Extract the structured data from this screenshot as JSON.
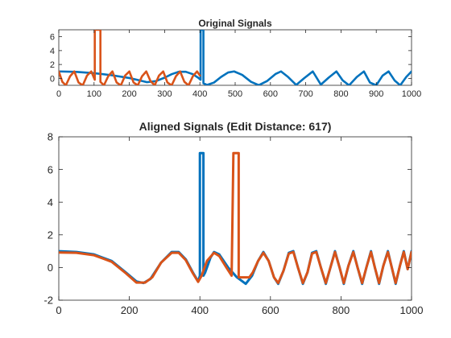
{
  "figure": {
    "background": "#ffffff",
    "axis_color": "#262626",
    "series_colors": [
      "#0072BD",
      "#D95319"
    ]
  },
  "chart_data": [
    {
      "type": "line",
      "title": "Original Signals",
      "xlim": [
        0,
        1000
      ],
      "ylim": [
        -1,
        7
      ],
      "xticks": [
        0,
        100,
        200,
        300,
        400,
        500,
        600,
        700,
        800,
        900,
        1000
      ],
      "yticks": [
        0,
        2,
        4,
        6
      ],
      "grid": false,
      "series": [
        {
          "color": "#0072BD",
          "points": [
            [
              0,
              1.0
            ],
            [
              50,
              0.93
            ],
            [
              100,
              0.75
            ],
            [
              150,
              0.45
            ],
            [
              200,
              0.05
            ],
            [
              230,
              -0.3
            ],
            [
              250,
              -0.55
            ],
            [
              275,
              -0.4
            ],
            [
              300,
              0.1
            ],
            [
              320,
              0.6
            ],
            [
              340,
              0.95
            ],
            [
              360,
              0.95
            ],
            [
              380,
              0.6
            ],
            [
              395,
              0.1
            ],
            [
              402,
              -0.2
            ],
            [
              402,
              7.0
            ],
            [
              410,
              7.0
            ],
            [
              410,
              -0.7
            ],
            [
              420,
              -0.95
            ],
            [
              440,
              -0.6
            ],
            [
              460,
              0.2
            ],
            [
              480,
              0.85
            ],
            [
              497,
              1.0
            ],
            [
              520,
              0.5
            ],
            [
              545,
              -0.5
            ],
            [
              567,
              -0.98
            ],
            [
              590,
              -0.4
            ],
            [
              615,
              0.65
            ],
            [
              630,
              1.0
            ],
            [
              650,
              0.2
            ],
            [
              673,
              -0.95
            ],
            [
              695,
              0.0
            ],
            [
              720,
              1.0
            ],
            [
              743,
              -0.9
            ],
            [
              765,
              0.1
            ],
            [
              787,
              1.0
            ],
            [
              805,
              -0.3
            ],
            [
              823,
              -1.0
            ],
            [
              845,
              0.2
            ],
            [
              865,
              1.0
            ],
            [
              882,
              -0.6
            ],
            [
              900,
              -1.0
            ],
            [
              918,
              0.4
            ],
            [
              935,
              1.0
            ],
            [
              952,
              -0.3
            ],
            [
              968,
              -1.0
            ],
            [
              985,
              0.2
            ],
            [
              1000,
              1.0
            ]
          ]
        },
        {
          "color": "#D95319",
          "points": [
            [
              0,
              1.0
            ],
            [
              10,
              -0.5
            ],
            [
              20,
              -1.0
            ],
            [
              32,
              0.3
            ],
            [
              44,
              1.0
            ],
            [
              56,
              -0.6
            ],
            [
              68,
              -1.0
            ],
            [
              80,
              0.4
            ],
            [
              92,
              1.0
            ],
            [
              102,
              -0.2
            ],
            [
              102,
              7.0
            ],
            [
              118,
              7.0
            ],
            [
              118,
              -0.5
            ],
            [
              128,
              -1.0
            ],
            [
              140,
              0.3
            ],
            [
              152,
              1.0
            ],
            [
              164,
              -0.6
            ],
            [
              176,
              -1.0
            ],
            [
              188,
              0.4
            ],
            [
              200,
              1.0
            ],
            [
              212,
              -0.6
            ],
            [
              224,
              -1.0
            ],
            [
              236,
              0.3
            ],
            [
              248,
              1.0
            ],
            [
              260,
              -0.4
            ],
            [
              272,
              -1.0
            ],
            [
              284,
              0.4
            ],
            [
              296,
              1.0
            ],
            [
              308,
              -0.6
            ],
            [
              320,
              -1.0
            ],
            [
              332,
              0.3
            ],
            [
              344,
              1.0
            ],
            [
              356,
              -0.5
            ],
            [
              368,
              -1.0
            ],
            [
              380,
              0.3
            ],
            [
              392,
              1.0
            ],
            [
              400,
              0.4
            ]
          ]
        }
      ]
    },
    {
      "type": "line",
      "title": "Aligned Signals (Edit Distance: 617)",
      "xlim": [
        0,
        1000
      ],
      "ylim": [
        -2,
        8
      ],
      "xticks": [
        0,
        200,
        400,
        600,
        800,
        1000
      ],
      "yticks": [
        -2,
        0,
        2,
        4,
        6,
        8
      ],
      "grid": false,
      "series": [
        {
          "color": "#0072BD",
          "points": [
            [
              0,
              1.0
            ],
            [
              50,
              0.95
            ],
            [
              100,
              0.8
            ],
            [
              150,
              0.4
            ],
            [
              190,
              -0.3
            ],
            [
              220,
              -0.85
            ],
            [
              240,
              -0.95
            ],
            [
              260,
              -0.7
            ],
            [
              290,
              0.3
            ],
            [
              320,
              0.95
            ],
            [
              340,
              0.95
            ],
            [
              360,
              0.5
            ],
            [
              380,
              -0.3
            ],
            [
              395,
              -0.85
            ],
            [
              400,
              -0.5
            ],
            [
              400,
              7.0
            ],
            [
              410,
              7.0
            ],
            [
              410,
              -0.5
            ],
            [
              415,
              -0.3
            ],
            [
              430,
              0.6
            ],
            [
              440,
              0.95
            ],
            [
              455,
              0.8
            ],
            [
              480,
              0.0
            ],
            [
              505,
              -0.6
            ],
            [
              530,
              -1.0
            ],
            [
              548,
              -0.5
            ],
            [
              565,
              0.4
            ],
            [
              580,
              0.95
            ],
            [
              595,
              0.4
            ],
            [
              610,
              -0.6
            ],
            [
              622,
              -1.0
            ],
            [
              637,
              -0.2
            ],
            [
              652,
              0.9
            ],
            [
              665,
              1.0
            ],
            [
              678,
              0.0
            ],
            [
              692,
              -1.0
            ],
            [
              705,
              -0.3
            ],
            [
              718,
              0.9
            ],
            [
              730,
              1.0
            ],
            [
              743,
              0.0
            ],
            [
              757,
              -1.0
            ],
            [
              770,
              0.0
            ],
            [
              783,
              1.0
            ],
            [
              796,
              0.0
            ],
            [
              808,
              -1.0
            ],
            [
              821,
              0.1
            ],
            [
              835,
              1.0
            ],
            [
              847,
              0.0
            ],
            [
              860,
              -1.0
            ],
            [
              872,
              0.0
            ],
            [
              885,
              1.0
            ],
            [
              896,
              0.0
            ],
            [
              908,
              -1.0
            ],
            [
              920,
              0.1
            ],
            [
              933,
              1.0
            ],
            [
              944,
              0.0
            ],
            [
              955,
              -1.0
            ],
            [
              967,
              0.1
            ],
            [
              978,
              1.0
            ],
            [
              989,
              -0.1
            ],
            [
              1000,
              1.0
            ]
          ]
        },
        {
          "color": "#D95319",
          "points": [
            [
              0,
              0.92
            ],
            [
              50,
              0.9
            ],
            [
              100,
              0.75
            ],
            [
              150,
              0.35
            ],
            [
              190,
              -0.35
            ],
            [
              220,
              -0.92
            ],
            [
              245,
              -0.92
            ],
            [
              265,
              -0.6
            ],
            [
              290,
              0.3
            ],
            [
              320,
              0.9
            ],
            [
              340,
              0.9
            ],
            [
              360,
              0.45
            ],
            [
              380,
              -0.35
            ],
            [
              395,
              -0.88
            ],
            [
              405,
              -0.5
            ],
            [
              420,
              0.4
            ],
            [
              440,
              0.9
            ],
            [
              455,
              0.7
            ],
            [
              475,
              0.0
            ],
            [
              490,
              -0.5
            ],
            [
              495,
              7.0
            ],
            [
              510,
              7.0
            ],
            [
              510,
              -0.6
            ],
            [
              540,
              -0.6
            ],
            [
              550,
              -0.3
            ],
            [
              565,
              0.4
            ],
            [
              580,
              0.9
            ],
            [
              595,
              0.4
            ],
            [
              610,
              -0.6
            ],
            [
              622,
              -0.95
            ],
            [
              637,
              -0.2
            ],
            [
              652,
              0.85
            ],
            [
              665,
              0.95
            ],
            [
              678,
              0.0
            ],
            [
              692,
              -0.95
            ],
            [
              705,
              -0.3
            ],
            [
              718,
              0.85
            ],
            [
              730,
              0.95
            ],
            [
              743,
              0.0
            ],
            [
              757,
              -0.95
            ],
            [
              770,
              0.0
            ],
            [
              783,
              0.95
            ],
            [
              796,
              0.0
            ],
            [
              808,
              -0.95
            ],
            [
              821,
              0.1
            ],
            [
              835,
              0.95
            ],
            [
              847,
              0.0
            ],
            [
              860,
              -0.95
            ],
            [
              872,
              0.0
            ],
            [
              885,
              0.95
            ],
            [
              896,
              0.0
            ],
            [
              908,
              -0.95
            ],
            [
              920,
              0.1
            ],
            [
              933,
              0.95
            ],
            [
              944,
              0.0
            ],
            [
              955,
              -0.95
            ],
            [
              967,
              0.1
            ],
            [
              978,
              0.95
            ],
            [
              989,
              -0.1
            ],
            [
              1000,
              0.95
            ]
          ]
        }
      ]
    }
  ]
}
